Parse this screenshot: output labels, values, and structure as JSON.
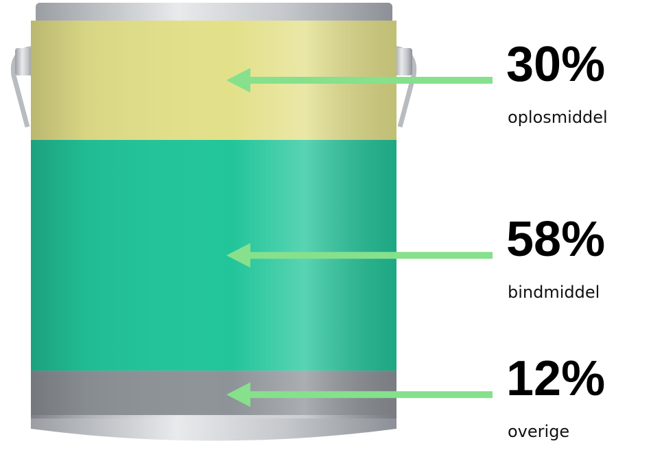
{
  "chart_data": {
    "type": "can",
    "categories": [
      "oplosmiddel",
      "bindmiddel",
      "overige"
    ],
    "values": [
      30,
      58,
      12
    ],
    "value_labels": [
      "30%",
      "58%",
      "12%"
    ],
    "colors": [
      "#e3e08a",
      "#22c59a",
      "#8e9398"
    ],
    "arrow_color": "#86e08c"
  }
}
